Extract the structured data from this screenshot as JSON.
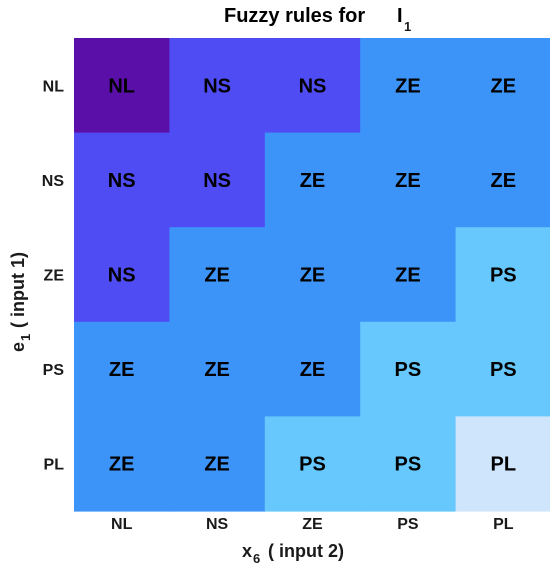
{
  "chart_data": {
    "type": "heatmap",
    "title": "Fuzzy rules for",
    "title_symbol": "I",
    "title_subscript": "1",
    "xlabel_prefix": "x",
    "xlabel_subscript": "6",
    "xlabel_text": "(  input  2)",
    "ylabel_prefix": "e",
    "ylabel_subscript": "1",
    "ylabel_text": "(  input  1)",
    "x_categories": [
      "NL",
      "NS",
      "ZE",
      "PS",
      "PL"
    ],
    "y_categories": [
      "NL",
      "NS",
      "ZE",
      "PS",
      "PL"
    ],
    "cells": [
      [
        "NL",
        "NS",
        "NS",
        "ZE",
        "ZE"
      ],
      [
        "NS",
        "NS",
        "ZE",
        "ZE",
        "ZE"
      ],
      [
        "NS",
        "ZE",
        "ZE",
        "ZE",
        "PS"
      ],
      [
        "ZE",
        "ZE",
        "ZE",
        "PS",
        "PS"
      ],
      [
        "ZE",
        "ZE",
        "PS",
        "PS",
        "PL"
      ]
    ],
    "colors": {
      "NL": "#5a0fa8",
      "NS": "#4f4cf4",
      "ZE": "#3d94f8",
      "PS": "#66c8fc",
      "PL": "#cfe5fb"
    },
    "grid": false
  }
}
